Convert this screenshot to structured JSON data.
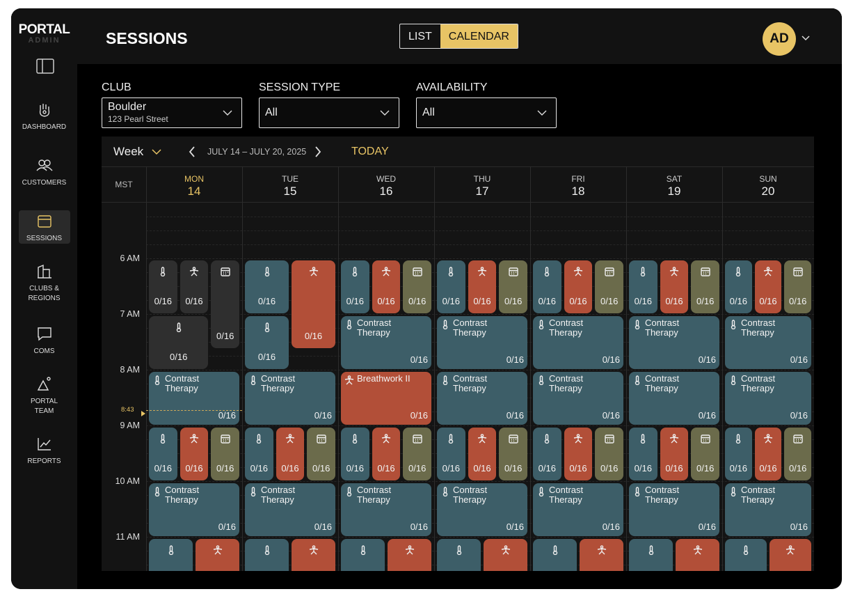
{
  "logo": {
    "name": "PORTAL",
    "sub": "ADMIN"
  },
  "nav": [
    {
      "lines": [
        "DASHBOARD"
      ]
    },
    {
      "lines": [
        "CUSTOMERS"
      ]
    },
    {
      "lines": [
        "SESSIONS"
      ],
      "active": true
    },
    {
      "lines": [
        "CLUBS &",
        "REGIONS"
      ]
    },
    {
      "lines": [
        "COMS"
      ]
    },
    {
      "lines": [
        "PORTAL",
        "TEAM"
      ]
    },
    {
      "lines": [
        "REPORTS"
      ]
    }
  ],
  "header": {
    "title": "SESSIONS",
    "views": [
      "LIST",
      "CALENDAR"
    ],
    "active_view": 1,
    "avatar": "AD"
  },
  "filters": [
    {
      "label": "CLUB",
      "value": "Boulder",
      "detail": "123 Pearl Street"
    },
    {
      "label": "SESSION TYPE",
      "value": "All"
    },
    {
      "label": "AVAILABILITY",
      "value": "All"
    }
  ],
  "calendar": {
    "view": "Week",
    "range": "JULY 14 – JULY 20, 2025",
    "today": "TODAY",
    "timezone": "MST",
    "now": "8:43",
    "hours": [
      "6 AM",
      "7 AM",
      "8 AM",
      "9 AM",
      "10 AM",
      "11 AM"
    ],
    "days": [
      {
        "name": "MON",
        "date": 14,
        "today": true,
        "events": [
          {
            "icon": "temp",
            "count": "0/16",
            "past": true
          },
          {
            "icon": "breath",
            "count": "0/16",
            "past": true
          },
          {
            "icon": "cal",
            "count": "0/16",
            "past": true
          },
          {
            "icon": "temp",
            "count": "0/16",
            "past": true
          },
          {
            "icon": "temp",
            "label": "Contrast Therapy",
            "count": "0/16"
          },
          {
            "icon": "temp",
            "count": "0/16"
          },
          {
            "icon": "breath",
            "count": "0/16"
          },
          {
            "icon": "cal",
            "count": "0/16"
          },
          {
            "icon": "temp",
            "label": "Contrast Therapy",
            "count": "0/16"
          },
          {
            "icon": "temp"
          },
          {
            "icon": "breath"
          }
        ]
      },
      {
        "name": "TUE",
        "date": 15,
        "events": [
          {
            "icon": "temp",
            "count": "0/16"
          },
          {
            "icon": "breath",
            "count": "0/16"
          },
          {
            "icon": "temp",
            "count": "0/16"
          },
          {
            "icon": "temp",
            "label": "Contrast Therapy",
            "count": "0/16"
          },
          {
            "icon": "temp",
            "count": "0/16"
          },
          {
            "icon": "breath",
            "count": "0/16"
          },
          {
            "icon": "cal",
            "count": "0/16"
          },
          {
            "icon": "temp",
            "label": "Contrast Therapy",
            "count": "0/16"
          },
          {
            "icon": "temp"
          },
          {
            "icon": "breath"
          }
        ]
      },
      {
        "name": "WED",
        "date": 16,
        "events": [
          {
            "icon": "temp",
            "count": "0/16"
          },
          {
            "icon": "breath",
            "count": "0/16"
          },
          {
            "icon": "cal",
            "count": "0/16"
          },
          {
            "icon": "temp",
            "label": "Contrast Therapy",
            "count": "0/16"
          },
          {
            "icon": "breath",
            "label": "Breathwork II",
            "count": "0/16"
          },
          {
            "icon": "temp",
            "count": "0/16"
          },
          {
            "icon": "breath",
            "count": "0/16"
          },
          {
            "icon": "cal",
            "count": "0/16"
          },
          {
            "icon": "temp",
            "label": "Contrast Therapy",
            "count": "0/16"
          },
          {
            "icon": "temp"
          },
          {
            "icon": "breath"
          }
        ]
      },
      {
        "name": "THU",
        "date": 17,
        "events": [
          {
            "icon": "temp",
            "count": "0/16"
          },
          {
            "icon": "breath",
            "count": "0/16"
          },
          {
            "icon": "cal",
            "count": "0/16"
          },
          {
            "icon": "temp",
            "label": "Contrast Therapy",
            "count": "0/16"
          },
          {
            "icon": "temp",
            "label": "Contrast Therapy",
            "count": "0/16"
          },
          {
            "icon": "temp",
            "count": "0/16"
          },
          {
            "icon": "breath",
            "count": "0/16"
          },
          {
            "icon": "cal",
            "count": "0/16"
          },
          {
            "icon": "temp",
            "label": "Contrast Therapy",
            "count": "0/16"
          },
          {
            "icon": "temp"
          },
          {
            "icon": "breath"
          }
        ]
      },
      {
        "name": "FRI",
        "date": 18,
        "events": [
          {
            "icon": "temp",
            "count": "0/16"
          },
          {
            "icon": "breath",
            "count": "0/16"
          },
          {
            "icon": "cal",
            "count": "0/16"
          },
          {
            "icon": "temp",
            "label": "Contrast Therapy",
            "count": "0/16"
          },
          {
            "icon": "temp",
            "label": "Contrast Therapy",
            "count": "0/16"
          },
          {
            "icon": "temp",
            "count": "0/16"
          },
          {
            "icon": "breath",
            "count": "0/16"
          },
          {
            "icon": "cal",
            "count": "0/16"
          },
          {
            "icon": "temp",
            "label": "Contrast Therapy",
            "count": "0/16"
          },
          {
            "icon": "temp"
          },
          {
            "icon": "breath"
          }
        ]
      },
      {
        "name": "SAT",
        "date": 19,
        "events": [
          {
            "icon": "temp",
            "count": "0/16"
          },
          {
            "icon": "breath",
            "count": "0/16"
          },
          {
            "icon": "cal",
            "count": "0/16"
          },
          {
            "icon": "temp",
            "label": "Contrast Therapy",
            "count": "0/16"
          },
          {
            "icon": "temp",
            "label": "Contrast Therapy",
            "count": "0/16"
          },
          {
            "icon": "temp",
            "count": "0/16"
          },
          {
            "icon": "breath",
            "count": "0/16"
          },
          {
            "icon": "cal",
            "count": "0/16"
          },
          {
            "icon": "temp",
            "label": "Contrast Therapy",
            "count": "0/16"
          },
          {
            "icon": "temp"
          },
          {
            "icon": "breath"
          }
        ]
      },
      {
        "name": "SUN",
        "date": 20,
        "events": [
          {
            "icon": "temp",
            "count": "0/16"
          },
          {
            "icon": "breath",
            "count": "0/16"
          },
          {
            "icon": "cal",
            "count": "0/16"
          },
          {
            "icon": "temp",
            "label": "Contrast Therapy",
            "count": "0/16"
          },
          {
            "icon": "temp",
            "label": "Contrast Therapy",
            "count": "0/16"
          },
          {
            "icon": "temp",
            "count": "0/16"
          },
          {
            "icon": "breath",
            "count": "0/16"
          },
          {
            "icon": "cal",
            "count": "0/16"
          },
          {
            "icon": "temp",
            "label": "Contrast Therapy",
            "count": "0/16"
          },
          {
            "icon": "temp"
          },
          {
            "icon": "breath"
          }
        ]
      }
    ]
  }
}
